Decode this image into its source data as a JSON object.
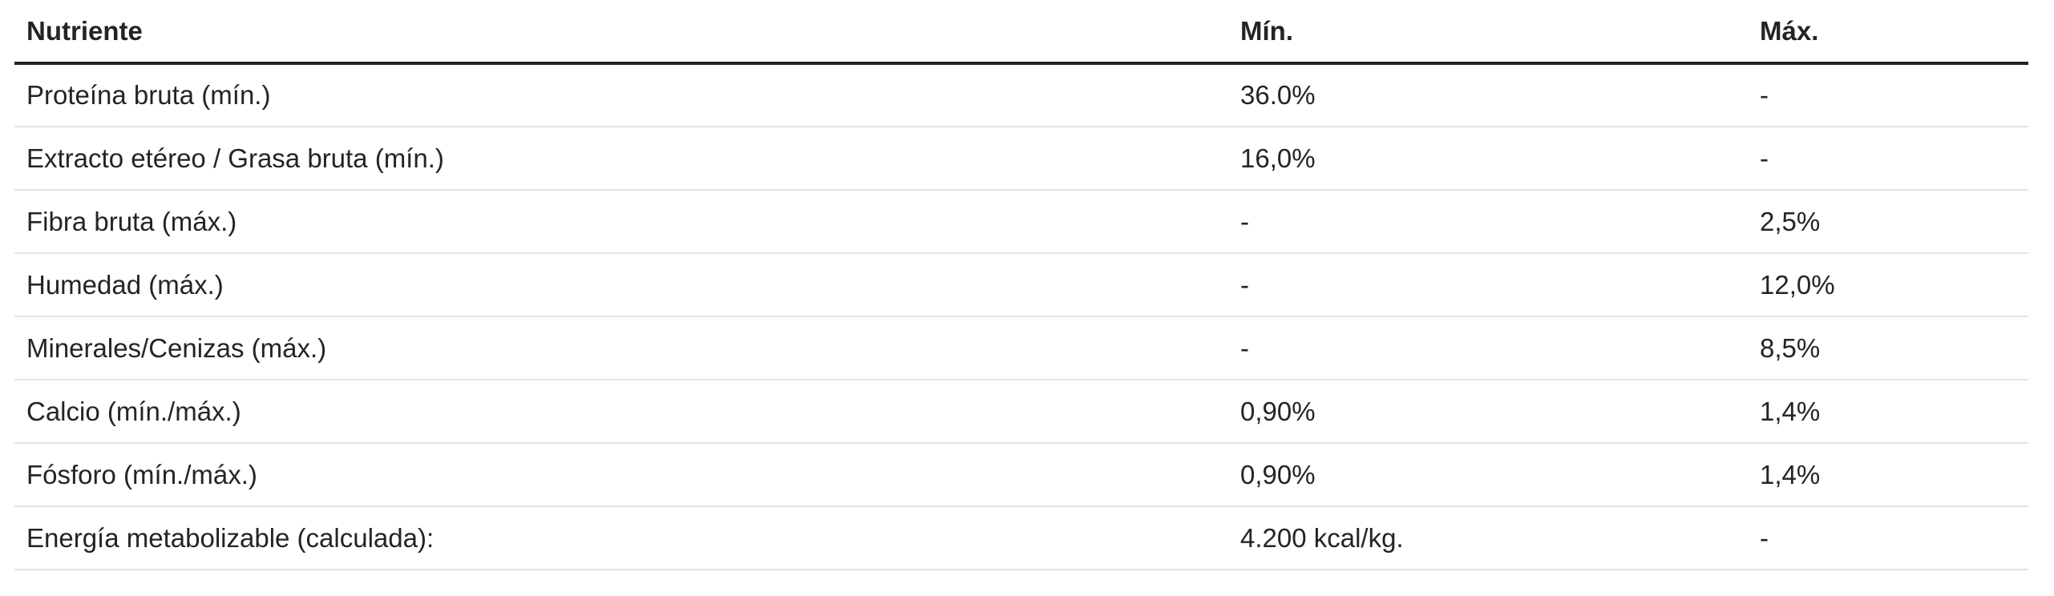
{
  "table": {
    "columns": [
      "Nutriente",
      "Mín.",
      "Máx."
    ],
    "rows": [
      {
        "nutrient": "Proteína bruta (mín.)",
        "min": "36.0%",
        "max": "-"
      },
      {
        "nutrient": "Extracto etéreo / Grasa bruta (mín.)",
        "min": "16,0%",
        "max": "-"
      },
      {
        "nutrient": "Fibra bruta (máx.)",
        "min": "-",
        "max": "2,5%"
      },
      {
        "nutrient": "Humedad (máx.)",
        "min": "-",
        "max": "12,0%"
      },
      {
        "nutrient": "Minerales/Cenizas (máx.)",
        "min": "-",
        "max": "8,5%"
      },
      {
        "nutrient": "Calcio (mín./máx.)",
        "min": "0,90%",
        "max": "1,4%"
      },
      {
        "nutrient": "Fósforo (mín./máx.)",
        "min": "0,90%",
        "max": "1,4%"
      },
      {
        "nutrient": "Energía metabolizable (calculada):",
        "min": "4.200 kcal/kg.",
        "max": "-"
      }
    ],
    "colors": {
      "text": "#212529",
      "header_border": "#1f242b",
      "row_border": "#e2e5e9",
      "background": "#ffffff"
    }
  },
  "chart_data": {
    "type": "table",
    "title": "",
    "columns": [
      "Nutriente",
      "Mín.",
      "Máx."
    ],
    "rows": [
      [
        "Proteína bruta (mín.)",
        "36.0%",
        "-"
      ],
      [
        "Extracto etéreo / Grasa bruta (mín.)",
        "16,0%",
        "-"
      ],
      [
        "Fibra bruta (máx.)",
        "-",
        "2,5%"
      ],
      [
        "Humedad (máx.)",
        "-",
        "12,0%"
      ],
      [
        "Minerales/Cenizas (máx.)",
        "-",
        "8,5%"
      ],
      [
        "Calcio (mín./máx.)",
        "0,90%",
        "1,4%"
      ],
      [
        "Fósforo (mín./máx.)",
        "0,90%",
        "1,4%"
      ],
      [
        "Energía metabolizable (calculada):",
        "4.200 kcal/kg.",
        "-"
      ]
    ]
  }
}
